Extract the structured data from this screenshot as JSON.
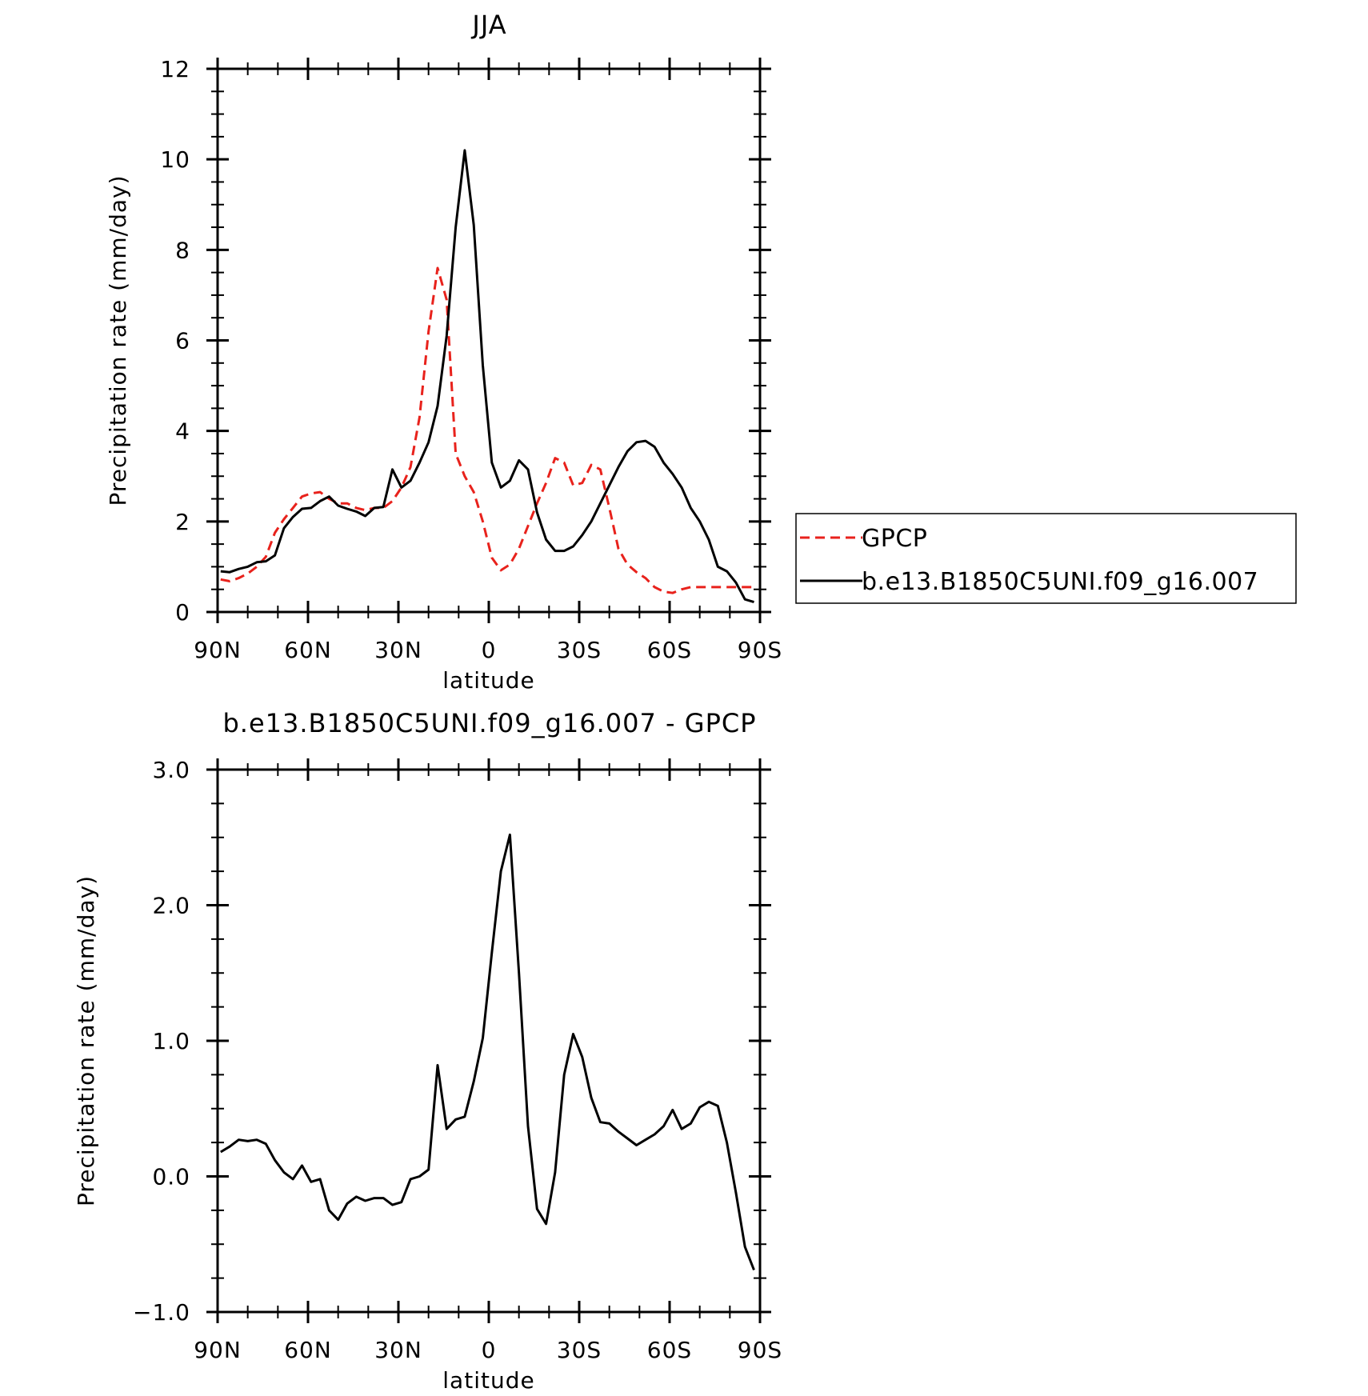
{
  "chart_data": [
    {
      "type": "line",
      "title": "JJA",
      "xlabel": "latitude",
      "ylabel": "Precipitation rate (mm/day)",
      "xlim": [
        90,
        -90
      ],
      "ylim": [
        0,
        12
      ],
      "xticks": [
        90,
        60,
        30,
        0,
        -30,
        -60,
        -90
      ],
      "xtick_labels": [
        "90N",
        "60N",
        "30N",
        "0",
        "30S",
        "60S",
        "90S"
      ],
      "yticks": [
        0,
        2,
        4,
        6,
        8,
        10,
        12
      ],
      "ytick_labels": [
        "0",
        "2",
        "4",
        "6",
        "8",
        "10",
        "12"
      ],
      "legend_position": "right",
      "x": [
        89,
        86,
        83,
        80,
        77,
        74,
        71,
        68,
        65,
        62,
        59,
        56,
        53,
        50,
        47,
        44,
        41,
        38,
        35,
        32,
        29,
        26,
        23,
        20,
        17,
        14,
        11,
        8,
        5,
        2,
        -1,
        -4,
        -7,
        -10,
        -13,
        -16,
        -19,
        -22,
        -25,
        -28,
        -31,
        -34,
        -37,
        -40,
        -43,
        -46,
        -49,
        -52,
        -55,
        -58,
        -61,
        -64,
        -67,
        -70,
        -73,
        -76,
        -79,
        -82,
        -85,
        -88
      ],
      "series": [
        {
          "name": "GPCP",
          "color": "#e8221c",
          "dash": "dashed",
          "values": [
            0.72,
            0.68,
            0.75,
            0.85,
            1.0,
            1.22,
            1.75,
            2.05,
            2.3,
            2.55,
            2.62,
            2.65,
            2.5,
            2.4,
            2.4,
            2.3,
            2.25,
            2.3,
            2.3,
            2.45,
            2.75,
            3.2,
            4.3,
            6.2,
            7.6,
            6.9,
            3.5,
            3.0,
            2.65,
            2.0,
            1.2,
            0.92,
            1.05,
            1.4,
            1.9,
            2.4,
            2.85,
            3.4,
            3.3,
            2.8,
            2.85,
            3.25,
            3.15,
            2.3,
            1.4,
            1.05,
            0.88,
            0.75,
            0.55,
            0.45,
            0.42,
            0.5,
            0.55,
            0.55,
            0.55,
            0.55,
            0.55,
            0.55,
            0.55,
            0.55
          ]
        },
        {
          "name": "b.e13.B1850C5UNI.f09_g16.007",
          "color": "#000000",
          "dash": "solid",
          "values": [
            0.9,
            0.88,
            0.95,
            1.0,
            1.1,
            1.12,
            1.25,
            1.85,
            2.1,
            2.28,
            2.3,
            2.45,
            2.55,
            2.35,
            2.28,
            2.22,
            2.12,
            2.3,
            2.32,
            3.15,
            2.75,
            2.9,
            3.3,
            3.75,
            4.55,
            6.1,
            8.5,
            10.2,
            8.55,
            5.45,
            3.3,
            2.75,
            2.9,
            3.35,
            3.15,
            2.2,
            1.6,
            1.35,
            1.35,
            1.45,
            1.7,
            2.0,
            2.4,
            2.8,
            3.2,
            3.55,
            3.75,
            3.78,
            3.65,
            3.3,
            3.05,
            2.75,
            2.3,
            2.0,
            1.6,
            1.0,
            0.9,
            0.65,
            0.28,
            0.22
          ]
        }
      ]
    },
    {
      "type": "line",
      "title": "b.e13.B1850C5UNI.f09_g16.007 - GPCP",
      "xlabel": "latitude",
      "ylabel": "Precipitation rate (mm/day)",
      "xlim": [
        90,
        -90
      ],
      "ylim": [
        -1.0,
        3.0
      ],
      "xticks": [
        90,
        60,
        30,
        0,
        -30,
        -60,
        -90
      ],
      "xtick_labels": [
        "90N",
        "60N",
        "30N",
        "0",
        "30S",
        "60S",
        "90S"
      ],
      "yticks": [
        -1.0,
        0.0,
        1.0,
        2.0,
        3.0
      ],
      "ytick_labels": [
        "−1.0",
        "0.0",
        "1.0",
        "2.0",
        "3.0"
      ],
      "x": [
        89,
        86,
        83,
        80,
        77,
        74,
        71,
        68,
        65,
        62,
        59,
        56,
        53,
        50,
        47,
        44,
        41,
        38,
        35,
        32,
        29,
        26,
        23,
        20,
        17,
        14,
        11,
        8,
        5,
        2,
        -1,
        -4,
        -7,
        -10,
        -13,
        -16,
        -19,
        -22,
        -25,
        -28,
        -31,
        -34,
        -37,
        -40,
        -43,
        -46,
        -49,
        -52,
        -55,
        -58,
        -61,
        -64,
        -67,
        -70,
        -73,
        -76,
        -79,
        -82,
        -85,
        -88
      ],
      "series": [
        {
          "color": "#000000",
          "dash": "solid",
          "values": [
            0.18,
            0.22,
            0.27,
            0.26,
            0.27,
            0.24,
            0.12,
            0.03,
            -0.02,
            0.08,
            -0.04,
            -0.02,
            -0.25,
            -0.32,
            -0.2,
            -0.15,
            -0.18,
            -0.16,
            -0.16,
            -0.21,
            -0.19,
            -0.02,
            0.0,
            0.05,
            0.82,
            0.35,
            0.42,
            0.44,
            0.7,
            1.02,
            1.65,
            2.25,
            2.52,
            1.5,
            0.37,
            -0.24,
            -0.35,
            0.03,
            0.75,
            1.05,
            0.88,
            0.58,
            0.4,
            0.39,
            0.33,
            0.28,
            0.23,
            0.27,
            0.31,
            0.37,
            0.49,
            0.35,
            0.39,
            0.51,
            0.55,
            0.52,
            0.25,
            -0.12,
            -0.52,
            -0.69
          ]
        }
      ]
    }
  ],
  "legend": {
    "items": [
      {
        "label": "GPCP",
        "color": "#e8221c",
        "dash": "dashed"
      },
      {
        "label": "b.e13.B1850C5UNI.f09_g16.007",
        "color": "#000000",
        "dash": "solid"
      }
    ]
  }
}
